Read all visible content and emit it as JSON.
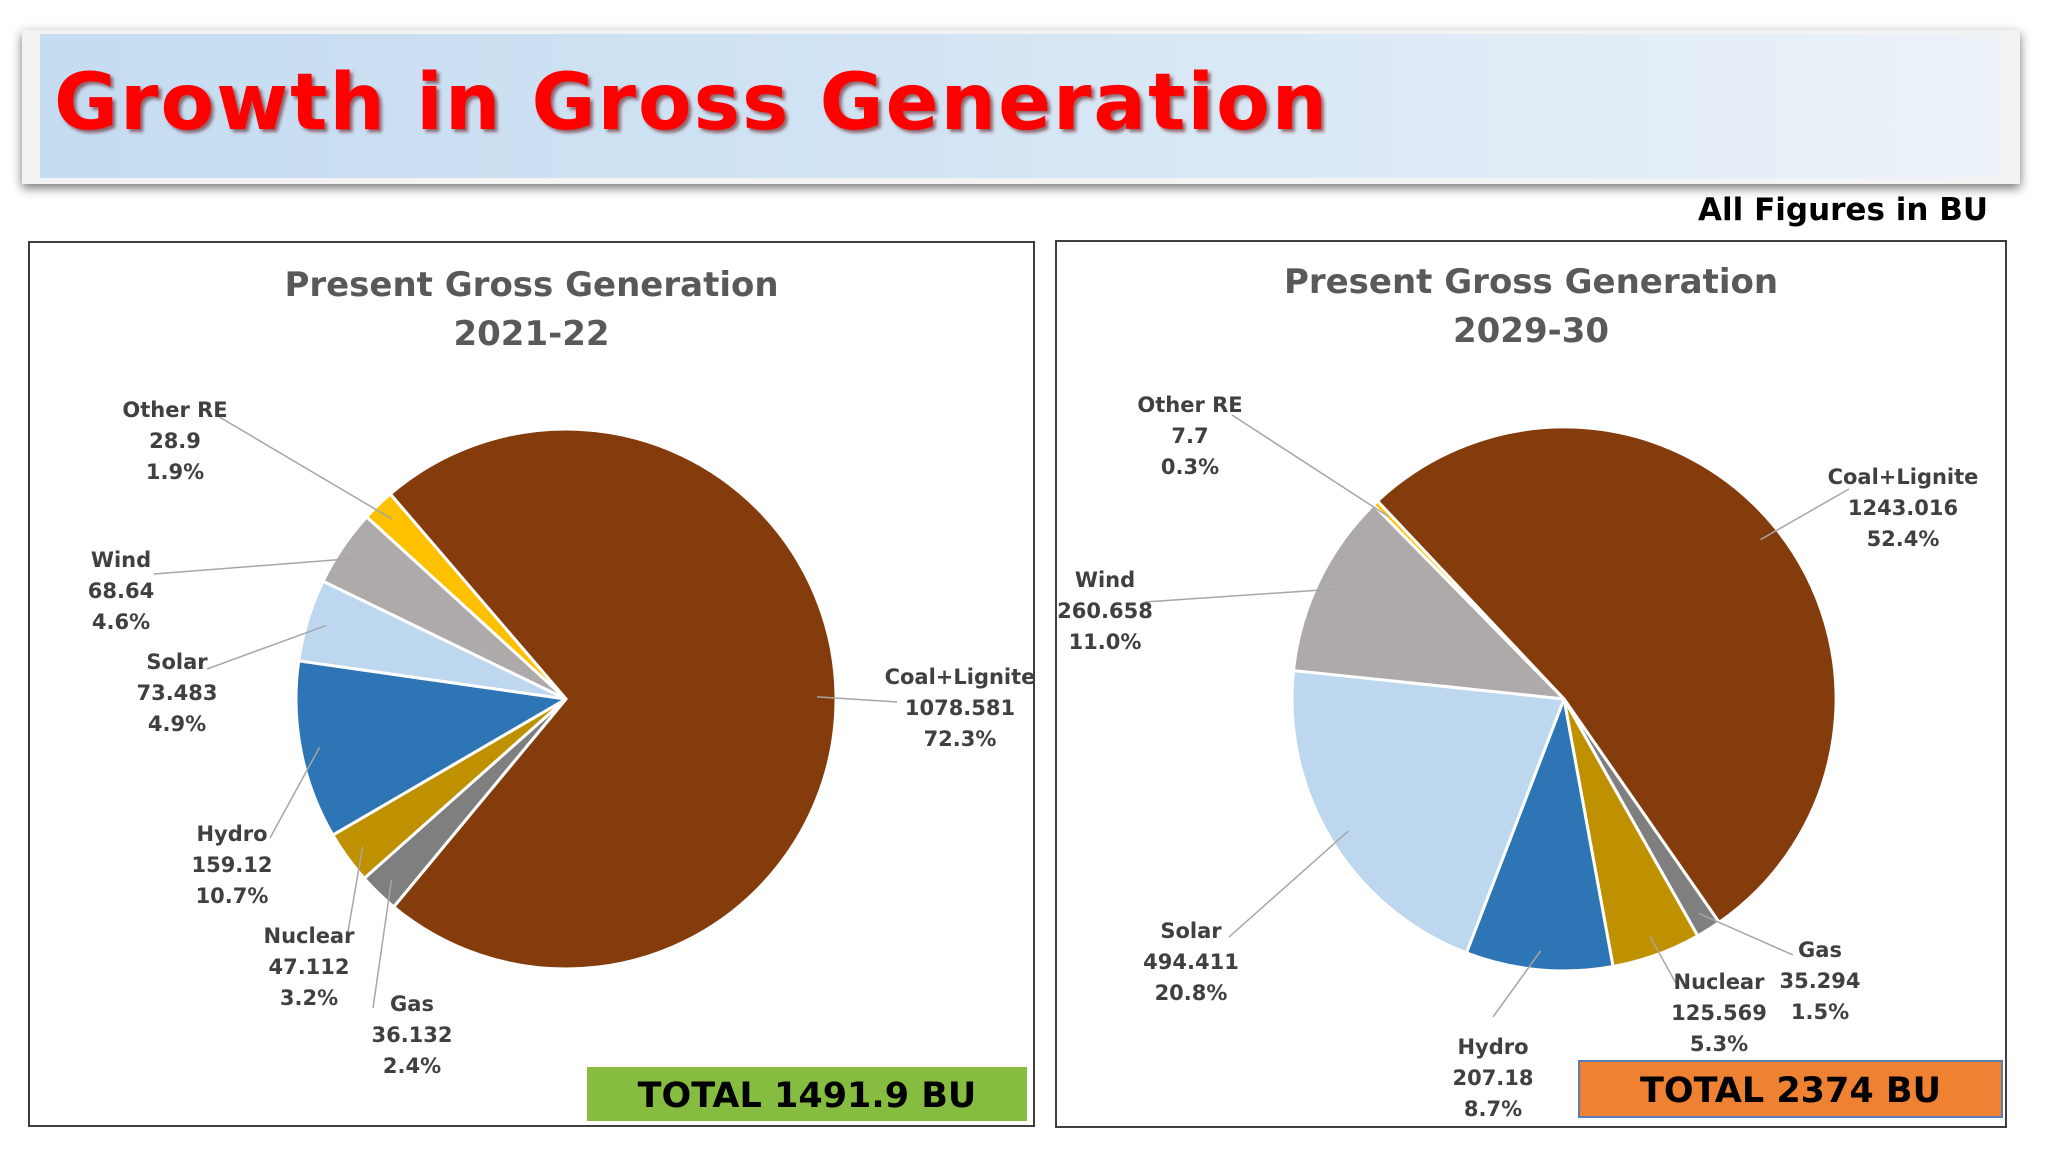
{
  "slide": {
    "title": "Growth in Gross Generation",
    "units_note": "All Figures in BU"
  },
  "colors": {
    "Coal+Lignite": "#843c0c",
    "Gas": "#7f7f7f",
    "Nuclear": "#bf9000",
    "Hydro": "#2e75b6",
    "Solar": "#bdd7ee",
    "Wind": "#aeaaaa",
    "Other RE": "#ffc000"
  },
  "chart_data": [
    {
      "type": "pie",
      "title": "Present Gross Generation",
      "subtitle": "2021-22",
      "total_label": "TOTAL 1491.9 BU",
      "slices": [
        {
          "label": "Coal+Lignite",
          "value": "1078.581",
          "percent": "72.3%"
        },
        {
          "label": "Gas",
          "value": "36.132",
          "percent": "2.4%"
        },
        {
          "label": "Nuclear",
          "value": "47.112",
          "percent": "3.2%"
        },
        {
          "label": "Hydro",
          "value": "159.12",
          "percent": "10.7%"
        },
        {
          "label": "Solar",
          "value": "73.483",
          "percent": "4.9%"
        },
        {
          "label": "Wind",
          "value": "68.64",
          "percent": "4.6%"
        },
        {
          "label": "Other RE",
          "value": "28.9",
          "percent": "1.9%"
        }
      ]
    },
    {
      "type": "pie",
      "title": "Present Gross Generation",
      "subtitle": "2029-30",
      "total_label": "TOTAL 2374 BU",
      "slices": [
        {
          "label": "Coal+Lignite",
          "value": "1243.016",
          "percent": "52.4%"
        },
        {
          "label": "Gas",
          "value": "35.294",
          "percent": "1.5%"
        },
        {
          "label": "Nuclear",
          "value": "125.569",
          "percent": "5.3%"
        },
        {
          "label": "Hydro",
          "value": "207.18",
          "percent": "8.7%"
        },
        {
          "label": "Solar",
          "value": "494.411",
          "percent": "20.8%"
        },
        {
          "label": "Wind",
          "value": "260.658",
          "percent": "11.0%"
        },
        {
          "label": "Other RE",
          "value": "7.7",
          "percent": "0.3%"
        }
      ]
    }
  ]
}
